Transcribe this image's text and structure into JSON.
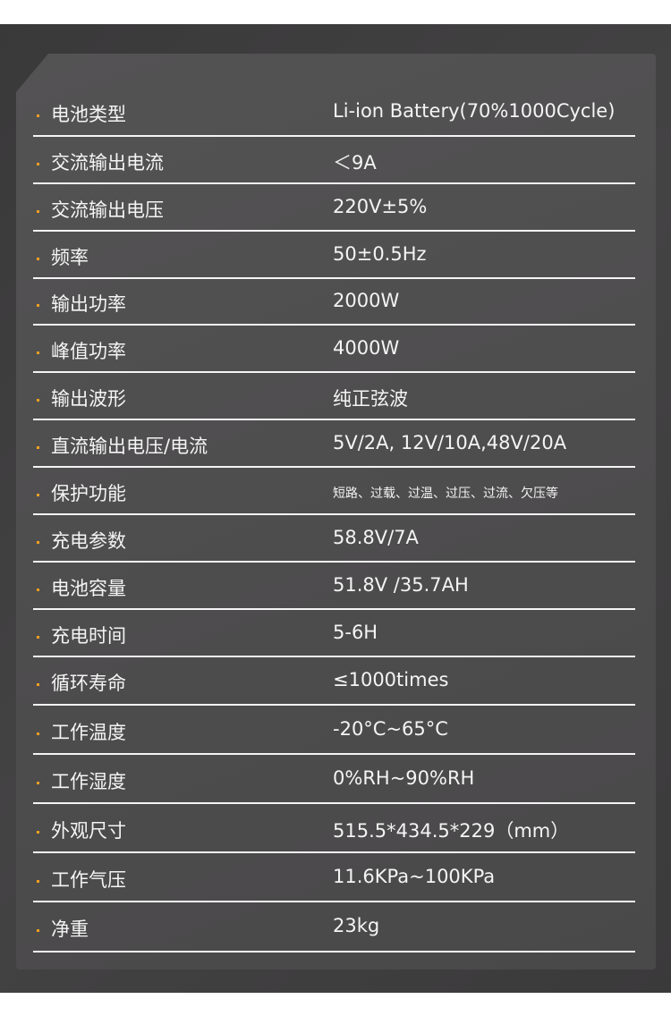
{
  "specs": [
    {
      "label": "电池类型",
      "value": "Li-ion Battery(70%1000Cycle)"
    },
    {
      "label": "交流输出电流",
      "value": "＜9A"
    },
    {
      "label": "交流输出电压",
      "value": "220V±5%"
    },
    {
      "label": "频率",
      "value": "50±0.5Hz"
    },
    {
      "label": "输出功率",
      "value": "2000W"
    },
    {
      "label": "峰值功率",
      "value": "4000W"
    },
    {
      "label": "输出波形",
      "value": "纯正弦波"
    },
    {
      "label": "直流输出电压/电流",
      "value": "5V/2A, 12V/10A,48V/20A"
    },
    {
      "label": "保护功能",
      "value": "短路、过载、过温、过压、过流、欠压等"
    },
    {
      "label": "充电参数",
      "value": "58.8V/7A"
    },
    {
      "label": "电池容量",
      "value": "51.8V /35.7AH"
    },
    {
      "label": "充电时间",
      "value": "5-6H"
    },
    {
      "label": "循环寿命",
      "value": "≤1000times"
    },
    {
      "label": "工作温度",
      "value": "-20°C~65°C"
    },
    {
      "label": "工作湿度",
      "value": "0%RH~90%RH"
    },
    {
      "label": "外观尺寸",
      "value": "515.5*434.5*229（mm）"
    },
    {
      "label": "工作气压",
      "value": "11.6KPa~100KPa"
    },
    {
      "label": "净重",
      "value": "23kg"
    }
  ],
  "colors": {
    "accent_dot": "#f0a020",
    "background": "#404040",
    "panel": "#504f50",
    "text": "#f4f4f4"
  }
}
